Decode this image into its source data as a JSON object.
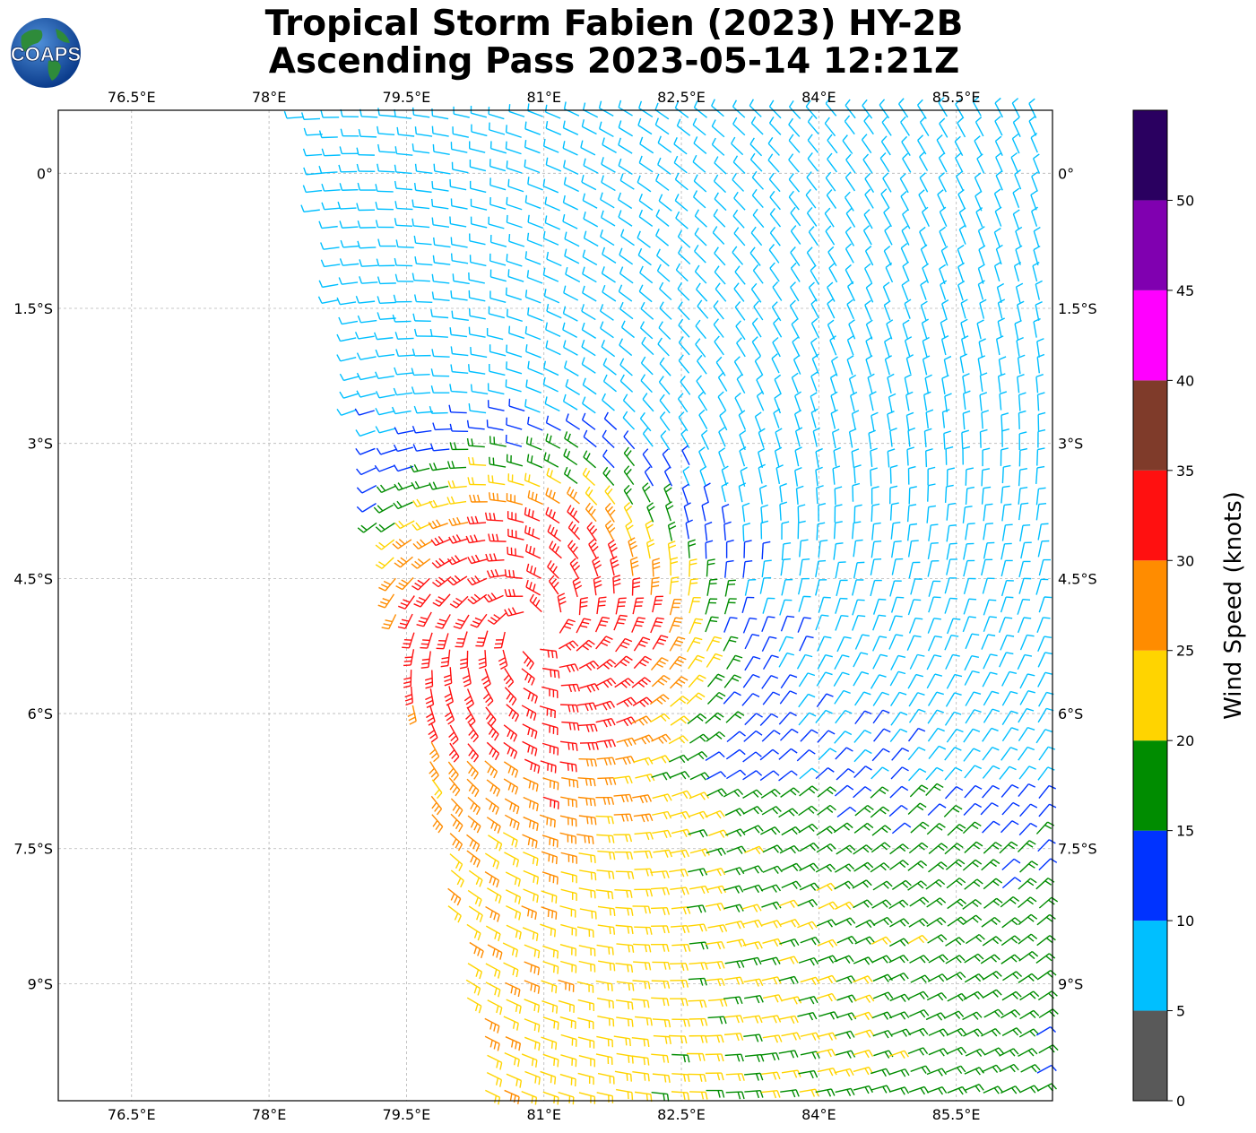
{
  "title": {
    "line1": "Tropical Storm Fabien (2023) HY-2B",
    "line2": "Ascending Pass 2023-05-14 12:21Z"
  },
  "logo": {
    "text": "COAPS"
  },
  "map": {
    "lon_range": [
      75.7,
      86.55
    ],
    "lat_range": [
      -10.3,
      0.7
    ],
    "lon_ticks": [
      {
        "value": 76.5,
        "label": "76.5°E"
      },
      {
        "value": 78.0,
        "label": "78°E"
      },
      {
        "value": 79.5,
        "label": "79.5°E"
      },
      {
        "value": 81.0,
        "label": "81°E"
      },
      {
        "value": 82.5,
        "label": "82.5°E"
      },
      {
        "value": 84.0,
        "label": "84°E"
      },
      {
        "value": 85.5,
        "label": "85.5°E"
      }
    ],
    "lat_ticks": [
      {
        "value": 0.0,
        "label": "0°"
      },
      {
        "value": -1.5,
        "label": "1.5°S"
      },
      {
        "value": -3.0,
        "label": "3°S"
      },
      {
        "value": -4.5,
        "label": "4.5°S"
      },
      {
        "value": -6.0,
        "label": "6°S"
      },
      {
        "value": -7.5,
        "label": "7.5°S"
      },
      {
        "value": -9.0,
        "label": "9°S"
      }
    ],
    "gridlines": true,
    "storm_center": {
      "lon": 80.9,
      "lat": -5.05
    },
    "swath_corners": {
      "top_left": [
        78.3,
        0.7
      ],
      "bottom_left": [
        80.3,
        -10.3
      ]
    }
  },
  "colorbar": {
    "label": "Wind Speed (knots)",
    "bins": [
      {
        "min": 0,
        "max": 5,
        "color": "#595959"
      },
      {
        "min": 5,
        "max": 10,
        "color": "#00BFFF"
      },
      {
        "min": 10,
        "max": 15,
        "color": "#0033FF"
      },
      {
        "min": 15,
        "max": 20,
        "color": "#008C00"
      },
      {
        "min": 20,
        "max": 25,
        "color": "#FFD400"
      },
      {
        "min": 25,
        "max": 30,
        "color": "#FF8C00"
      },
      {
        "min": 30,
        "max": 35,
        "color": "#FF1010"
      },
      {
        "min": 35,
        "max": 40,
        "color": "#7F3B2A"
      },
      {
        "min": 40,
        "max": 45,
        "color": "#FF00FF"
      },
      {
        "min": 45,
        "max": 50,
        "color": "#8000B0"
      },
      {
        "min": 50,
        "max": 55,
        "color": "#2A0060"
      }
    ],
    "tick_labels": [
      "0",
      "5",
      "10",
      "15",
      "20",
      "25",
      "30",
      "35",
      "40",
      "45",
      "50"
    ]
  }
}
